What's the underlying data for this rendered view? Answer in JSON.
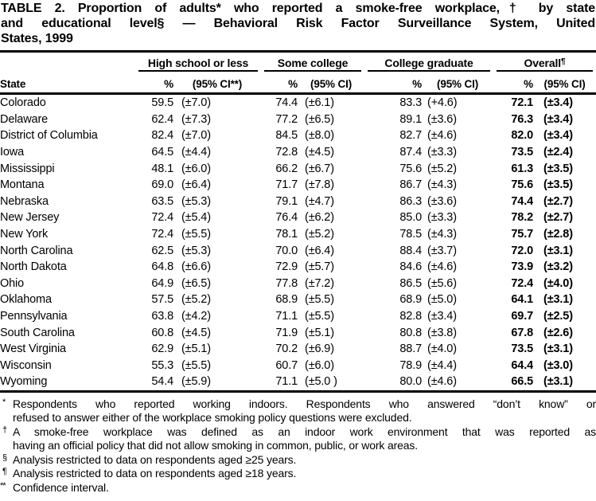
{
  "title": {
    "line1": "TABLE 2. Proportion of adults* who reported a smoke-free workplace,† by state",
    "line2": "and educational level§ — Behavioral Risk Factor Surveillance System, United",
    "line3": "States, 1999"
  },
  "table": {
    "state_header": "State",
    "groups": [
      {
        "label": "High school or less",
        "marker": "",
        "pct_label": "%",
        "ci_label": "(95% CI**)"
      },
      {
        "label": "Some college",
        "marker": "",
        "pct_label": "%",
        "ci_label": "(95% CI)"
      },
      {
        "label": "College graduate",
        "marker": "",
        "pct_label": "%",
        "ci_label": "(95% CI)"
      },
      {
        "label": "Overall",
        "marker": "¶",
        "pct_label": "%",
        "ci_label": "(95% CI)"
      }
    ],
    "rows": [
      [
        "Colorado",
        "59.5",
        "(±7.0)",
        "74.4",
        "(±6.1)",
        "83.3",
        "(+4.6)",
        "72.1",
        "(±3.4)"
      ],
      [
        "Delaware",
        "62.4",
        "(±7.3)",
        "77.2",
        "(±6.5)",
        "89.1",
        "(±3.6)",
        "76.3",
        "(±3.4)"
      ],
      [
        "District of Columbia",
        "82.4",
        "(±7.0)",
        "84.5",
        "(±8.0)",
        "82.7",
        "(±4.6)",
        "82.0",
        "(±3.4)"
      ],
      [
        "Iowa",
        "64.5",
        "(±4.4)",
        "72.8",
        "(±4.5)",
        "87.4",
        "(±3.3)",
        "73.5",
        "(±2.4)"
      ],
      [
        "Mississippi",
        "48.1",
        "(±6.0)",
        "66.2",
        "(±6.7)",
        "75.6",
        "(±5.2)",
        "61.3",
        "(±3.5)"
      ],
      [
        "Montana",
        "69.0",
        "(±6.4)",
        "71.7",
        "(±7.8)",
        "86.7",
        "(±4.3)",
        "75.6",
        "(±3.5)"
      ],
      [
        "Nebraska",
        "63.5",
        "(±5.3)",
        "79.1",
        "(±4.7)",
        "86.3",
        "(±3.6)",
        "74.4",
        "(±2.7)"
      ],
      [
        "New Jersey",
        "72.4",
        "(±5.4)",
        "76.4",
        "(±6.2)",
        "85.0",
        "(±3.3)",
        "78.2",
        "(±2.7)"
      ],
      [
        "New York",
        "72.4",
        "(±5.5)",
        "78.1",
        "(±5.2)",
        "78.5",
        "(±4.3)",
        "75.7",
        "(±2.8)"
      ],
      [
        "North Carolina",
        "62.5",
        "(±5.3)",
        "70.0",
        "(±6.4)",
        "88.4",
        "(±3.7)",
        "72.0",
        "(±3.1)"
      ],
      [
        "North Dakota",
        "64.8",
        "(±6.6)",
        "72.9",
        "(±5.7)",
        "84.6",
        "(±4.6)",
        "73.9",
        "(±3.2)"
      ],
      [
        "Ohio",
        "64.9",
        "(±6.5)",
        "77.8",
        "(±7.2)",
        "86.5",
        "(±5.6)",
        "72.4",
        "(±4.0)"
      ],
      [
        "Oklahoma",
        "57.5",
        "(±5.2)",
        "68.9",
        "(±5.5)",
        "68.9",
        "(±5.0)",
        "64.1",
        "(±3.1)"
      ],
      [
        "Pennsylvania",
        "63.8",
        "(±4.2)",
        "71.1",
        "(±5.5)",
        "82.8",
        "(±3.4)",
        "69.7",
        "(±2.5)"
      ],
      [
        "South Carolina",
        "60.8",
        "(±4.5)",
        "71.9",
        "(±5.1)",
        "80.8",
        "(±3.8)",
        "67.8",
        "(±2.6)"
      ],
      [
        "West Virginia",
        "62.9",
        "(±5.1)",
        "70.2",
        "(±6.9)",
        "88.7",
        "(±4.0)",
        "73.5",
        "(±3.1)"
      ],
      [
        "Wisconsin",
        "55.3",
        "(±5.5)",
        "60.7",
        "(±6.0)",
        "78.9",
        "(±4.4)",
        "64.4",
        "(±3.0)"
      ],
      [
        "Wyoming",
        "54.4",
        "(±5.9)",
        "71.1",
        "(±5.0 )",
        "80.0",
        "(±4.6)",
        "66.5",
        "(±3.1)"
      ]
    ]
  },
  "footnotes": [
    {
      "marker": "*",
      "lines": [
        "Respondents who reported working indoors. Respondents who answered “don’t know” or",
        "refused to answer either of the workplace smoking policy questions were excluded."
      ]
    },
    {
      "marker": "†",
      "lines": [
        "A smoke-free workplace was defined as an indoor work environment that was reported as",
        "having an official policy that did not allow smoking in common, public, or work areas."
      ]
    },
    {
      "marker": "§",
      "lines": [
        "Analysis restricted to data on respondents aged ≥25 years."
      ]
    },
    {
      "marker": "¶",
      "lines": [
        "Analysis restricted to data on respondents aged ≥18 years."
      ]
    },
    {
      "marker": "**",
      "lines": [
        "Confidence interval."
      ]
    }
  ]
}
